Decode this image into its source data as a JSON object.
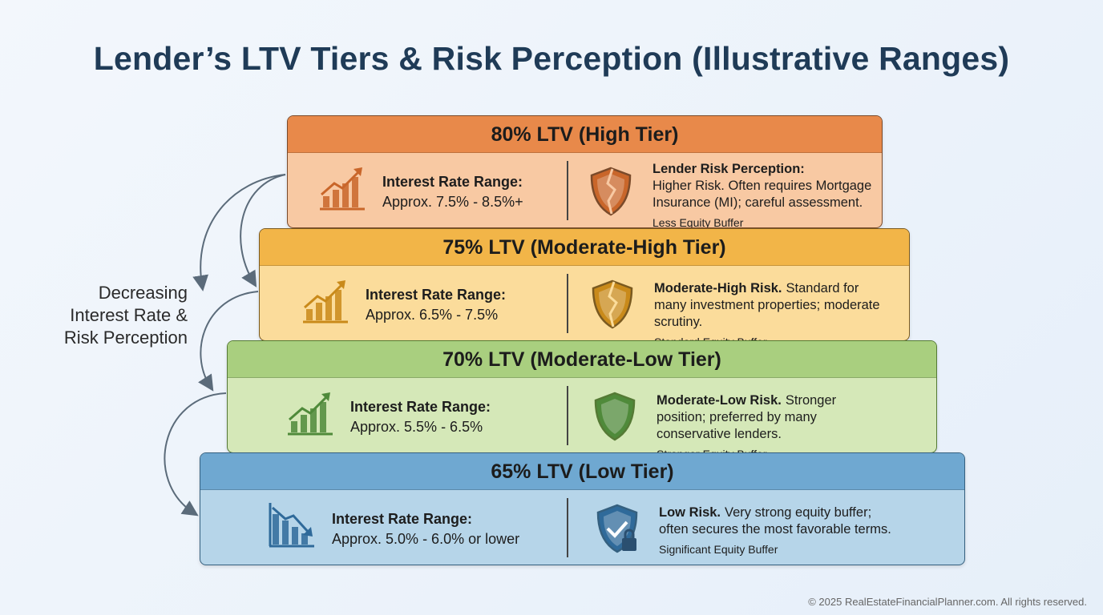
{
  "title": "Lender’s LTV Tiers & Risk Perception (Illustrative Ranges)",
  "side_label": [
    "Decreasing",
    "Interest Rate &",
    "Risk Perception"
  ],
  "tiers": [
    {
      "header": "80% LTV (High Tier)",
      "rate_label": "Interest Rate Range:",
      "rate": "Approx. 7.5% - 8.5%+",
      "risk_lead": "Lender Risk Perception:",
      "risk_text": "Higher Risk. Often requires Mortgage Insurance (MI); careful assessment.",
      "buffer": "Less Equity Buffer"
    },
    {
      "header": "75% LTV (Moderate-High Tier)",
      "rate_label": "Interest Rate Range:",
      "rate": "Approx. 6.5% - 7.5%",
      "risk_lead": "Moderate-High Risk.",
      "risk_text": "Standard for many investment properties; moderate scrutiny.",
      "buffer": "Standard Equity Buffer"
    },
    {
      "header": "70% LTV (Moderate-Low Tier)",
      "rate_label": "Interest Rate Range:",
      "rate": "Approx. 5.5% - 6.5%",
      "risk_lead": "Moderate-Low Risk.",
      "risk_text": "Stronger position; preferred by many conservative lenders.",
      "buffer": "Stronger Equity Buffer"
    },
    {
      "header": "65% LTV (Low Tier)",
      "rate_label": "Interest Rate Range:",
      "rate": "Approx. 5.0% - 6.0% or lower",
      "risk_lead": "Low Risk.",
      "risk_text": "Very strong equity buffer; often secures the most favorable terms.",
      "buffer": "Significant Equity Buffer"
    }
  ],
  "footer": "© 2025 RealEstateFinancialPlanner.com. All rights reserved."
}
